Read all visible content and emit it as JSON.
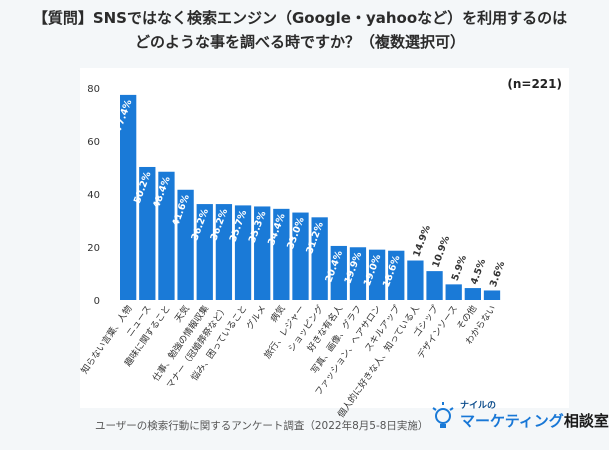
{
  "title_line1": "【質問】SNSではなく検索エンジン（Google・yahooなど）を利用するのは",
  "title_line2": "どのような事を調べる時ですか？（複数選択可）",
  "n_label": "(n=221)",
  "footer": "ユーザーの検索行動に関するアンケート調査（2022年8月5-8日実施）",
  "logo": {
    "sub": "ナイルの",
    "main_blue": "マーケティング",
    "main_black": "相談室",
    "icon": "lightbulb-icon"
  },
  "colors": {
    "bar": "#1a7ad7",
    "bar_label": "#ffffff",
    "outside_label": "#333333"
  },
  "chart_data": {
    "type": "bar",
    "categories": [
      "知らない言葉、人物",
      "ニュース",
      "趣味に関すること",
      "天気",
      "仕事、勉強の情報収集",
      "マナー（冠婚葬祭など）",
      "悩み、困っていること",
      "グルメ",
      "病気",
      "旅行、レジャー",
      "ショッピング",
      "好きな有名人",
      "写真、画像、グラフ",
      "ファッション、ヘアサロン",
      "スキルアップ",
      "個人的に好きな人、知っている人",
      "ゴシップ",
      "デザインソース",
      "その他",
      "わからない"
    ],
    "values": [
      77.4,
      50.2,
      48.4,
      41.6,
      36.2,
      36.2,
      35.7,
      35.3,
      34.4,
      33.0,
      31.2,
      20.4,
      19.9,
      19.0,
      18.6,
      14.9,
      10.9,
      5.9,
      4.5,
      3.6
    ],
    "value_labels": [
      "77.4%",
      "50.2%",
      "48.4%",
      "41.6%",
      "36.2%",
      "36.2%",
      "35.7%",
      "35.3%",
      "34.4%",
      "33.0%",
      "31.2%",
      "20.4%",
      "19.9%",
      "19.0%",
      "18.6%",
      "14.9%",
      "10.9%",
      "5.9%",
      "4.5%",
      "3.6%"
    ],
    "y_ticks": [
      0,
      20,
      40,
      60,
      80
    ],
    "ylim": [
      0,
      80
    ],
    "grid": false
  }
}
